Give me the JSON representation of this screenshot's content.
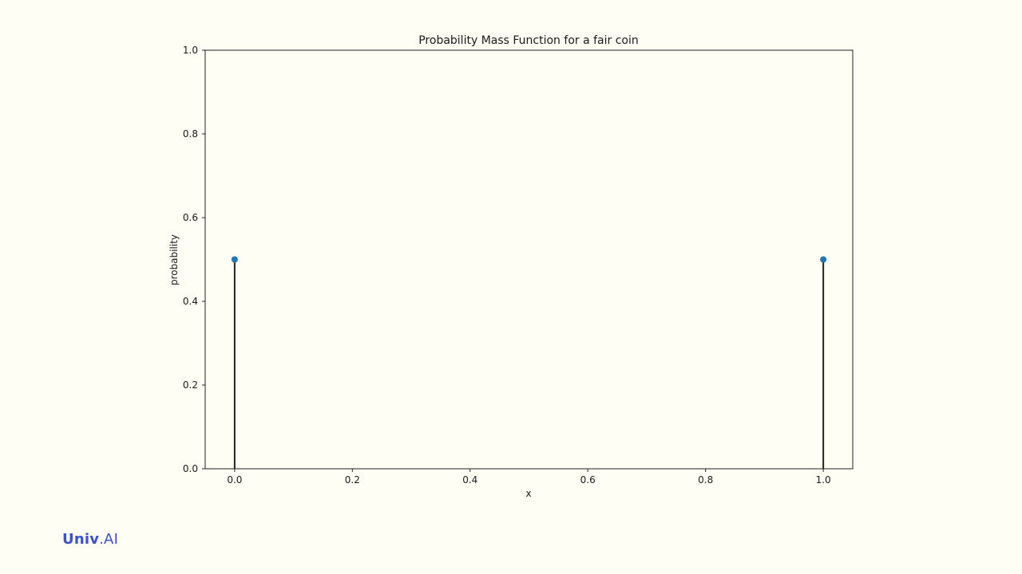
{
  "chart_data": {
    "type": "stem",
    "title": "Probability Mass Function for a fair coin",
    "xlabel": "x",
    "ylabel": "probability",
    "x": [
      0.0,
      1.0
    ],
    "y": [
      0.5,
      0.5
    ],
    "xlim": [
      -0.05,
      1.05
    ],
    "ylim": [
      0.0,
      1.0
    ],
    "xticks": [
      0.0,
      0.2,
      0.4,
      0.6,
      0.8,
      1.0
    ],
    "xtick_labels": [
      "0.0",
      "0.2",
      "0.4",
      "0.6",
      "0.8",
      "1.0"
    ],
    "yticks": [
      0.0,
      0.2,
      0.4,
      0.6,
      0.8,
      1.0
    ],
    "ytick_labels": [
      "0.0",
      "0.2",
      "0.4",
      "0.6",
      "0.8",
      "1.0"
    ],
    "grid": false,
    "colors": {
      "marker": "#1f77b4",
      "stem": "#222222",
      "axis": "#222222"
    }
  },
  "brand": {
    "name_bold": "Univ",
    "name_rest": ".AI"
  }
}
